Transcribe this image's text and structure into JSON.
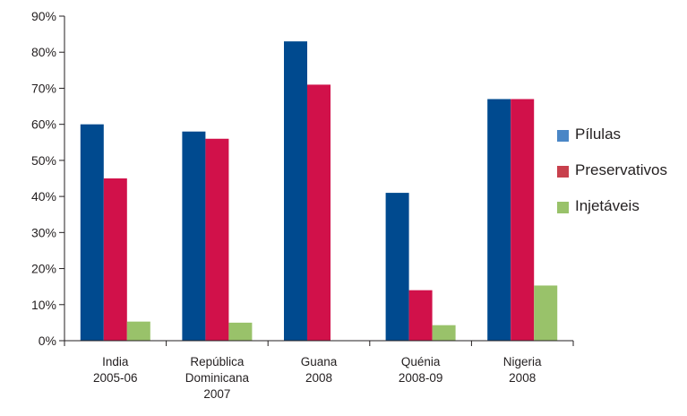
{
  "chart_data": {
    "type": "bar",
    "categories": [
      [
        "India",
        "2005-06"
      ],
      [
        "República",
        "Dominicana",
        "2007"
      ],
      [
        "Guana",
        "2008"
      ],
      [
        "Quénia",
        "2008-09"
      ],
      [
        "Nigeria",
        "2008"
      ]
    ],
    "series": [
      {
        "name": "Pílulas",
        "color": "#004a8f",
        "values": [
          60,
          58,
          83,
          41,
          67
        ]
      },
      {
        "name": "Preservativos",
        "color": "#d1114a",
        "values": [
          45,
          56,
          71,
          14,
          67
        ]
      },
      {
        "name": "Injetáveis",
        "color": "#99c26a",
        "values": [
          5.3,
          5,
          0,
          4.3,
          15.3
        ]
      }
    ],
    "legend_swatch_colors": [
      "#4a86c6",
      "#c8404d",
      "#99c26a"
    ],
    "yticks": [
      "0%",
      "10%",
      "20%",
      "30%",
      "40%",
      "50%",
      "60%",
      "70%",
      "80%",
      "90%"
    ],
    "ylim": [
      0,
      90
    ],
    "grid": false,
    "legend_position": "right",
    "title": "",
    "xlabel": "",
    "ylabel": ""
  }
}
